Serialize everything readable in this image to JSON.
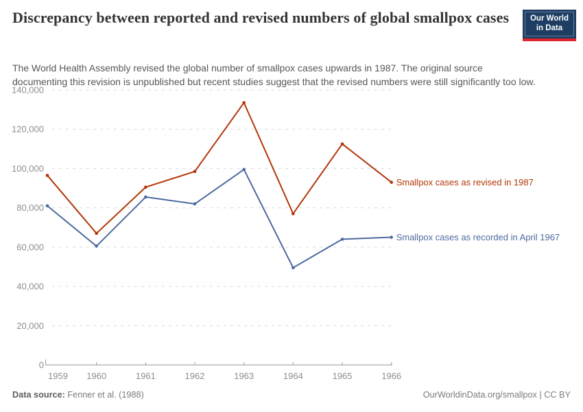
{
  "header": {
    "title": "Discrepancy between reported and revised numbers of global smallpox cases",
    "subtitle": "The World Health Assembly revised the global number of smallpox cases upwards in 1987. The original source\ndocumenting this revision is unpublished but recent studies suggest that the revised numbers were still significantly too low."
  },
  "logo": {
    "line1": "Our World",
    "line2": "in Data",
    "bg_color": "#1d3d63",
    "accent_color": "#e0232d"
  },
  "chart_data": {
    "type": "line",
    "title": "Discrepancy between reported and revised numbers of global smallpox cases",
    "x": [
      1959,
      1960,
      1961,
      1962,
      1963,
      1964,
      1965,
      1966
    ],
    "series": [
      {
        "name": "Smallpox cases as revised in 1987",
        "color": "#b13507",
        "values": [
          96500,
          67000,
          90500,
          98500,
          133500,
          77000,
          112500,
          93000
        ]
      },
      {
        "name": "Smallpox cases as recorded in April 1967",
        "color": "#4c6a9f",
        "values": [
          81000,
          60500,
          85500,
          82000,
          99500,
          49500,
          64000,
          65000
        ]
      }
    ],
    "ylim": [
      0,
      140000
    ],
    "yticks": [
      0,
      20000,
      40000,
      60000,
      80000,
      100000,
      120000,
      140000
    ],
    "xlabel": "",
    "ylabel": "",
    "grid": "dashed horizontal gridlines",
    "legend_position": "labels at right end of each line",
    "axis_text_color": "#8e8e8e",
    "grid_color": "#d9d9d9",
    "axis_line_color": "#9a9a9a"
  },
  "footer": {
    "data_source_label": "Data source:",
    "data_source_value": " Fenner et al. (1988)",
    "attribution": "OurWorldinData.org/smallpox | CC BY"
  }
}
